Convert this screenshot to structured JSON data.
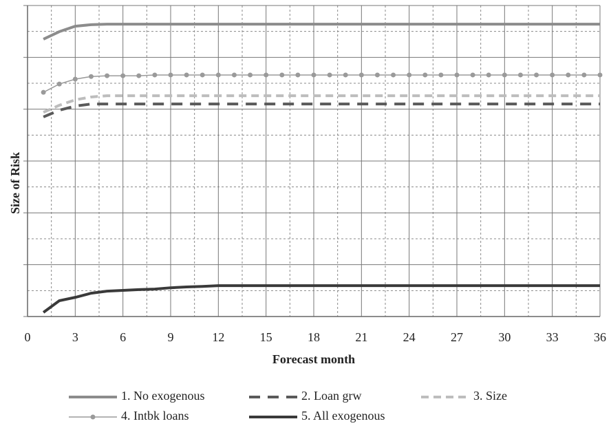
{
  "chart_data": {
    "type": "line",
    "x_label": "Forecast month",
    "y_label": "Size of Risk",
    "x": [
      1,
      2,
      3,
      4,
      5,
      6,
      7,
      8,
      9,
      10,
      11,
      12,
      13,
      14,
      15,
      16,
      17,
      18,
      19,
      20,
      21,
      22,
      23,
      24,
      25,
      26,
      27,
      28,
      29,
      30,
      31,
      32,
      33,
      34,
      35,
      36
    ],
    "xlim": [
      0,
      36
    ],
    "xticks": [
      0,
      3,
      6,
      9,
      12,
      15,
      18,
      21,
      24,
      27,
      30,
      33,
      36
    ],
    "ylim": [
      0,
      12
    ],
    "yticks": [
      0,
      2,
      4,
      6,
      8,
      10,
      12
    ],
    "grid": true,
    "series": [
      {
        "name": "1. No exogenous",
        "color": "#8c8c8c",
        "dash": "solid",
        "marker": "none",
        "values": [
          10.7,
          10.99,
          11.2,
          11.26,
          11.28,
          11.28,
          11.28,
          11.28,
          11.28,
          11.28,
          11.28,
          11.28,
          11.28,
          11.28,
          11.28,
          11.28,
          11.28,
          11.28,
          11.28,
          11.28,
          11.28,
          11.28,
          11.28,
          11.28,
          11.28,
          11.28,
          11.28,
          11.28,
          11.28,
          11.28,
          11.28,
          11.28,
          11.28,
          11.28,
          11.28,
          11.28
        ]
      },
      {
        "name": "2. Loan grw",
        "color": "#5a5a5a",
        "dash": "long",
        "marker": "none",
        "values": [
          7.7,
          7.96,
          8.12,
          8.2,
          8.2,
          8.2,
          8.2,
          8.2,
          8.2,
          8.2,
          8.2,
          8.2,
          8.2,
          8.2,
          8.2,
          8.2,
          8.2,
          8.2,
          8.2,
          8.2,
          8.2,
          8.2,
          8.2,
          8.2,
          8.2,
          8.2,
          8.2,
          8.2,
          8.2,
          8.2,
          8.2,
          8.2,
          8.2,
          8.2,
          8.2,
          8.2
        ]
      },
      {
        "name": "3. Size",
        "color": "#bdbdbd",
        "dash": "short",
        "marker": "none",
        "values": [
          7.88,
          8.15,
          8.36,
          8.47,
          8.52,
          8.52,
          8.52,
          8.52,
          8.52,
          8.52,
          8.52,
          8.52,
          8.52,
          8.52,
          8.52,
          8.52,
          8.52,
          8.52,
          8.52,
          8.52,
          8.52,
          8.52,
          8.52,
          8.52,
          8.52,
          8.52,
          8.52,
          8.52,
          8.52,
          8.52,
          8.52,
          8.52,
          8.52,
          8.52,
          8.52,
          8.52
        ]
      },
      {
        "name": "4. Intbk loans",
        "color": "#9a9a9a",
        "dash": "solid",
        "marker": "circle",
        "values": [
          8.65,
          8.97,
          9.16,
          9.26,
          9.29,
          9.29,
          9.29,
          9.32,
          9.32,
          9.32,
          9.32,
          9.32,
          9.32,
          9.32,
          9.32,
          9.32,
          9.32,
          9.32,
          9.32,
          9.32,
          9.32,
          9.32,
          9.32,
          9.32,
          9.32,
          9.32,
          9.32,
          9.32,
          9.32,
          9.32,
          9.32,
          9.32,
          9.32,
          9.32,
          9.32,
          9.32
        ]
      },
      {
        "name": "5. All exogenous",
        "color": "#3a3a3a",
        "dash": "solid",
        "marker": "none",
        "values": [
          0.16,
          0.61,
          0.74,
          0.9,
          0.98,
          1.01,
          1.04,
          1.06,
          1.11,
          1.14,
          1.16,
          1.19,
          1.19,
          1.19,
          1.19,
          1.19,
          1.19,
          1.19,
          1.19,
          1.19,
          1.19,
          1.19,
          1.19,
          1.19,
          1.19,
          1.19,
          1.19,
          1.19,
          1.19,
          1.19,
          1.19,
          1.19,
          1.19,
          1.19,
          1.19,
          1.19
        ]
      }
    ]
  }
}
